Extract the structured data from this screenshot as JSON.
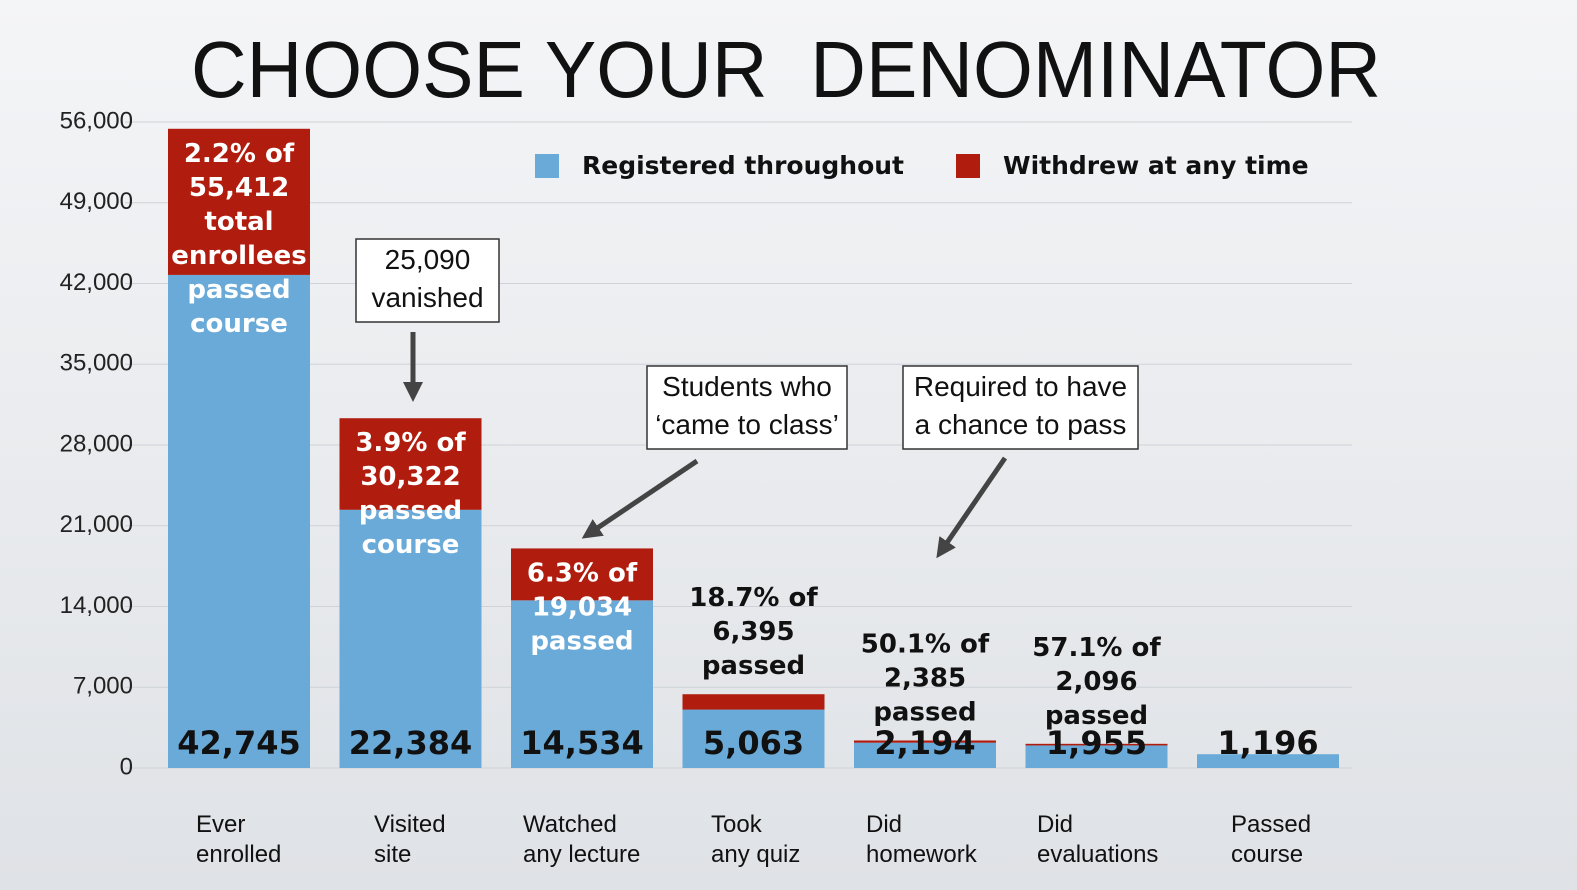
{
  "chart_data": {
    "type": "stacked_bar",
    "title": "CHOOSE YOUR  DENOMINATOR",
    "categories": [
      "Ever\nenrolled",
      "Visited\nsite",
      "Watched\nany lecture",
      "Took\nany quiz",
      "Did\nhomework",
      "Did\nevaluations",
      "Passed\ncourse"
    ],
    "series": [
      {
        "name": "Registered throughout",
        "color": "#6aaad8",
        "values": [
          42745,
          22384,
          14534,
          5063,
          2194,
          1955,
          1196
        ],
        "value_labels": [
          "42,745",
          "22,384",
          "14,534",
          "5,063",
          "2,194",
          "1,955",
          "1,196"
        ]
      },
      {
        "name": "Withdrew at any time",
        "color": "#b01c0e",
        "values": [
          12667,
          7938,
          4500,
          1332,
          191,
          141,
          0
        ]
      }
    ],
    "bar_labels": [
      "2.2% of\n55,412\ntotal\nenrollees\npassed\ncourse",
      "3.9% of\n30,322\npassed\ncourse",
      "6.3% of\n19,034\npassed",
      "18.7% of\n6,395\npassed",
      "50.1% of\n2,385\npassed",
      "57.1% of\n2,096\npassed",
      null
    ],
    "callouts": [
      "25,090\nvanished",
      "Students who\n‘came to class’",
      "Required to have\na chance to pass"
    ],
    "ylim": [
      0,
      56000
    ],
    "yticks": [
      0,
      {
        "value": 7000,
        "label": "7,000"
      },
      {
        "value": 14000,
        "label": "14,000"
      },
      {
        "value": 21000,
        "label": "21,000"
      },
      {
        "value": 28000,
        "label": "28,000"
      },
      {
        "value": 35000,
        "label": "35,000"
      },
      {
        "value": 42000,
        "label": "42,000"
      },
      {
        "value": 49000,
        "label": "49,000"
      },
      {
        "value": 56000,
        "label": "56,000"
      }
    ],
    "grid": true
  }
}
